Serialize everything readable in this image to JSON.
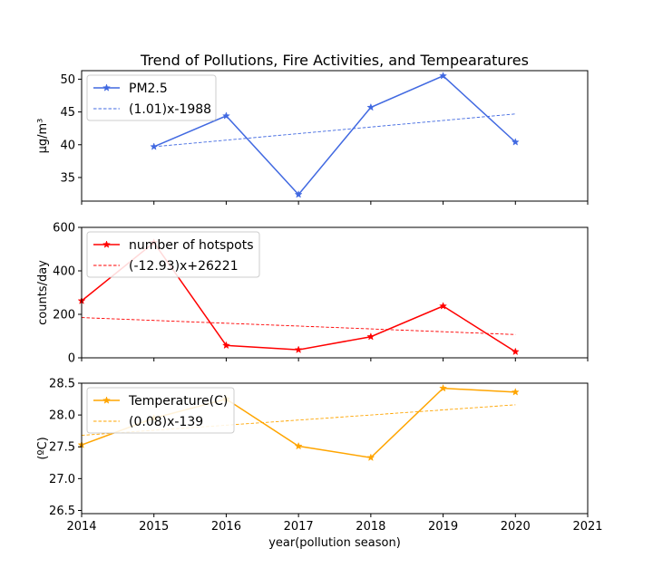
{
  "chart_data": {
    "type": "line",
    "title": "Trend of Pollutions, Fire Activities, and Tempearatures",
    "xlabel": "year(pollution season)",
    "x_ticks": [
      "2014",
      "2015",
      "2016",
      "2017",
      "2018",
      "2019",
      "2020",
      "2021"
    ],
    "xlim": [
      2014,
      2021
    ],
    "panels": [
      {
        "id": "pm25",
        "ylabel": "µg/m³",
        "ylim": [
          31.4,
          51.3
        ],
        "y_ticks": [
          35,
          40,
          45,
          50
        ],
        "y_tick_labels": [
          "35",
          "40",
          "45",
          "50"
        ],
        "color": "#4169e1",
        "series": [
          {
            "name": "PM2.5",
            "kind": "data",
            "x": [
              2015,
              2016,
              2017,
              2018,
              2019,
              2020
            ],
            "y": [
              39.7,
              44.4,
              32.4,
              45.7,
              50.5,
              40.4
            ]
          },
          {
            "name": "(1.01)x-1988",
            "kind": "trend",
            "x": [
              2015,
              2020
            ],
            "y": [
              39.7,
              44.7
            ]
          }
        ]
      },
      {
        "id": "hotspots",
        "ylabel": "counts/day",
        "ylim": [
          0,
          600
        ],
        "y_ticks": [
          0,
          200,
          400,
          600
        ],
        "y_tick_labels": [
          "0",
          "200",
          "400",
          "600"
        ],
        "color": "#ff0000",
        "series": [
          {
            "name": "number of hotspots",
            "kind": "data",
            "x": [
              2014,
              2015,
              2016,
              2017,
              2018,
              2019,
              2020
            ],
            "y": [
              262,
              530,
              57,
              37,
              97,
              238,
              28
            ]
          },
          {
            "name": "(-12.93)x+26221",
            "kind": "trend",
            "x": [
              2014,
              2020
            ],
            "y": [
              185,
              107
            ]
          }
        ]
      },
      {
        "id": "temperature",
        "ylabel": "(ºC)",
        "ylim": [
          26.45,
          28.5
        ],
        "y_ticks": [
          26.5,
          27.0,
          27.5,
          28.0,
          28.5
        ],
        "y_tick_labels": [
          "26.5",
          "27.0",
          "27.5",
          "28.0",
          "28.5"
        ],
        "color": "#ffa500",
        "series": [
          {
            "name": "Temperature(C)",
            "kind": "data",
            "x": [
              2014,
              2015,
              2016,
              2017,
              2018,
              2019,
              2020
            ],
            "y": [
              27.53,
              27.95,
              28.25,
              27.51,
              27.33,
              28.42,
              28.36
            ]
          },
          {
            "name": "(0.08)x-139",
            "kind": "trend",
            "x": [
              2014,
              2020
            ],
            "y": [
              27.68,
              28.16
            ]
          }
        ]
      }
    ],
    "legend_placement": "upper-left",
    "grid": false
  }
}
